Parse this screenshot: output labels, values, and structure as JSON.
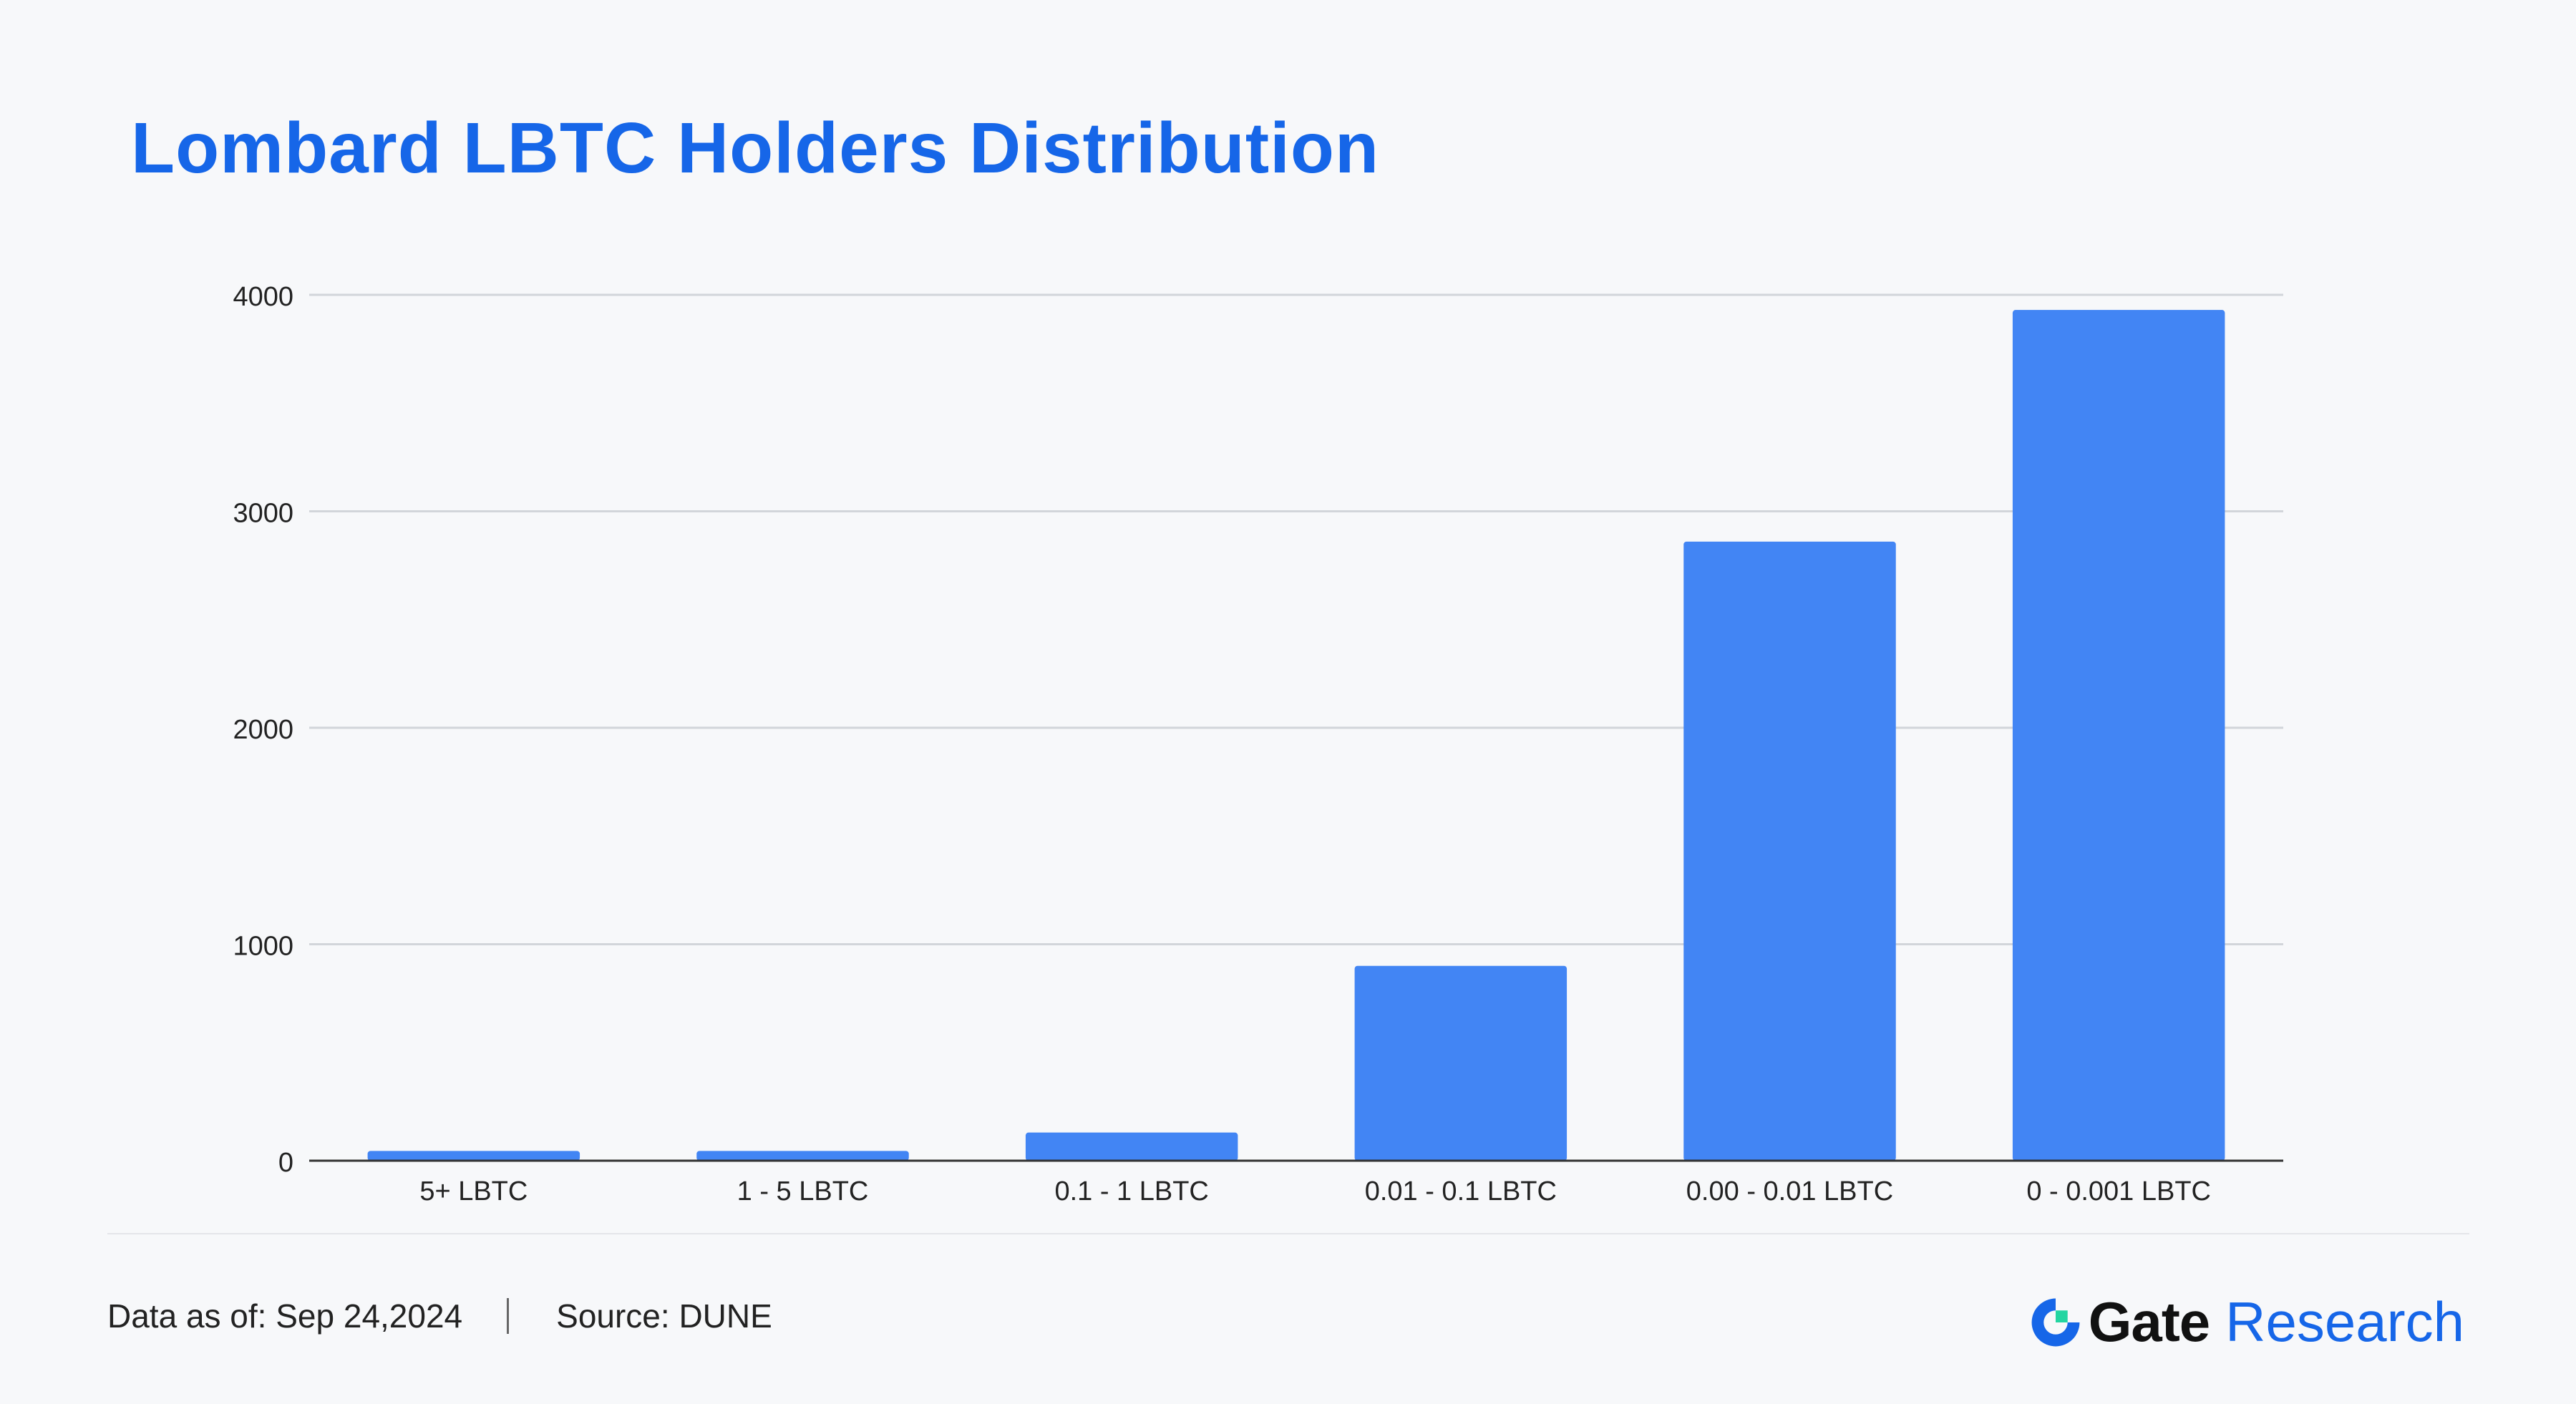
{
  "title": "Lombard LBTC Holders Distribution",
  "footer": {
    "date_note": "Data as of: Sep 24,2024",
    "source_note": "Source: DUNE"
  },
  "brand": {
    "logo_icon": "gate-logo-icon",
    "name": "Gate",
    "suffix": "Research"
  },
  "colors": {
    "title": "#1666e8",
    "bar": "#4285f4",
    "grid": "#d2d5da",
    "axis": "#333333",
    "brand_blue": "#1666e8",
    "brand_green": "#23d5a1"
  },
  "chart_data": {
    "type": "bar",
    "categories": [
      "5+ LBTC",
      "1 - 5 LBTC",
      "0.1 - 1 LBTC",
      "0.01 - 0.1 LBTC",
      "0.00 - 0.01 LBTC",
      "0 - 0.001 LBTC"
    ],
    "series": [
      {
        "values": [
          45,
          45,
          130,
          900,
          2860,
          3930
        ]
      }
    ],
    "yticks": [
      0,
      1000,
      2000,
      3000,
      4000
    ],
    "ylim": [
      0,
      4000
    ],
    "xlabel": "",
    "ylabel": "",
    "grid": true,
    "legend": false
  }
}
